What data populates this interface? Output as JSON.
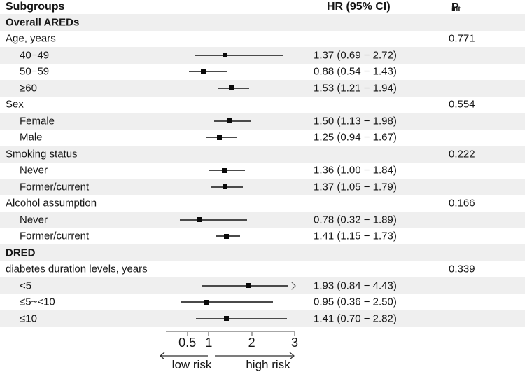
{
  "chart_data": {
    "type": "scatter",
    "variant": "forest-plot",
    "title": "",
    "columns": {
      "subgroups": "Subgroups",
      "hr_ci": "HR (95% CI)",
      "p_label": "P",
      "p_sub": "int"
    },
    "x_axis": {
      "scale": "linear",
      "min": 0,
      "max": 3,
      "ticks": [
        0.5,
        1,
        2,
        3
      ],
      "tick_labels": [
        "0.5",
        "1",
        "2",
        "3"
      ],
      "reference_line": 1,
      "low_label": "low risk",
      "high_label": "high risk"
    },
    "rows": [
      {
        "label": "Overall AREDs",
        "indent": 0,
        "bold": true,
        "shaded": true
      },
      {
        "label": "Age, years",
        "indent": 0,
        "p_int": "0.771",
        "shaded": false
      },
      {
        "label": "40−49",
        "indent": 1,
        "hr": 1.37,
        "ci_low": 0.69,
        "ci_high": 2.72,
        "hr_text": "1.37 (0.69 − 2.72)",
        "shaded": true
      },
      {
        "label": "50−59",
        "indent": 1,
        "hr": 0.88,
        "ci_low": 0.54,
        "ci_high": 1.43,
        "hr_text": "0.88 (0.54 − 1.43)",
        "shaded": false
      },
      {
        "label": "≥60",
        "indent": 1,
        "hr": 1.53,
        "ci_low": 1.21,
        "ci_high": 1.94,
        "hr_text": "1.53 (1.21 − 1.94)",
        "shaded": true
      },
      {
        "label": "Sex",
        "indent": 0,
        "p_int": "0.554",
        "shaded": false
      },
      {
        "label": "Female",
        "indent": 1,
        "hr": 1.5,
        "ci_low": 1.13,
        "ci_high": 1.98,
        "hr_text": "1.50 (1.13 − 1.98)",
        "shaded": true
      },
      {
        "label": "Male",
        "indent": 1,
        "hr": 1.25,
        "ci_low": 0.94,
        "ci_high": 1.67,
        "hr_text": "1.25 (0.94 − 1.67)",
        "shaded": false
      },
      {
        "label": "Smoking status",
        "indent": 0,
        "p_int": "0.222",
        "shaded": true
      },
      {
        "label": "Never",
        "indent": 1,
        "hr": 1.36,
        "ci_low": 1.0,
        "ci_high": 1.84,
        "hr_text": "1.36 (1.00 − 1.84)",
        "shaded": false
      },
      {
        "label": "Former/current",
        "indent": 1,
        "hr": 1.37,
        "ci_low": 1.05,
        "ci_high": 1.79,
        "hr_text": "1.37 (1.05 − 1.79)",
        "shaded": true
      },
      {
        "label": "Alcohol assumption",
        "indent": 0,
        "p_int": "0.166",
        "shaded": false
      },
      {
        "label": "Never",
        "indent": 1,
        "hr": 0.78,
        "ci_low": 0.32,
        "ci_high": 1.89,
        "hr_text": "0.78 (0.32 − 1.89)",
        "shaded": true
      },
      {
        "label": "Former/current",
        "indent": 1,
        "hr": 1.41,
        "ci_low": 1.15,
        "ci_high": 1.73,
        "hr_text": "1.41 (1.15 − 1.73)",
        "shaded": false
      },
      {
        "label": "DRED",
        "indent": 0,
        "bold": true,
        "shaded": true
      },
      {
        "label": "diabetes duration levels, years",
        "indent": 0,
        "p_int": "0.339",
        "shaded": false
      },
      {
        "label": "<5",
        "indent": 1,
        "hr": 1.93,
        "ci_low": 0.84,
        "ci_high": 4.43,
        "hr_text": "1.93 (0.84 − 4.43)",
        "clipped_right": true,
        "shaded": true
      },
      {
        "label": "≤5~<10",
        "indent": 1,
        "hr": 0.95,
        "ci_low": 0.36,
        "ci_high": 2.5,
        "hr_text": "0.95 (0.36 − 2.50)",
        "shaded": false
      },
      {
        "label": "≤10",
        "indent": 1,
        "hr": 1.41,
        "ci_low": 0.7,
        "ci_high": 2.82,
        "hr_text": "1.41 (0.70 − 2.82)",
        "shaded": true
      }
    ],
    "colors": {
      "band": "#efefef",
      "marker": "#0a0a0a",
      "ci_line": "#4a4a4a",
      "axis": "#a6a6a6",
      "reference_dash": "#3c3c3c",
      "text": "#161616"
    }
  }
}
